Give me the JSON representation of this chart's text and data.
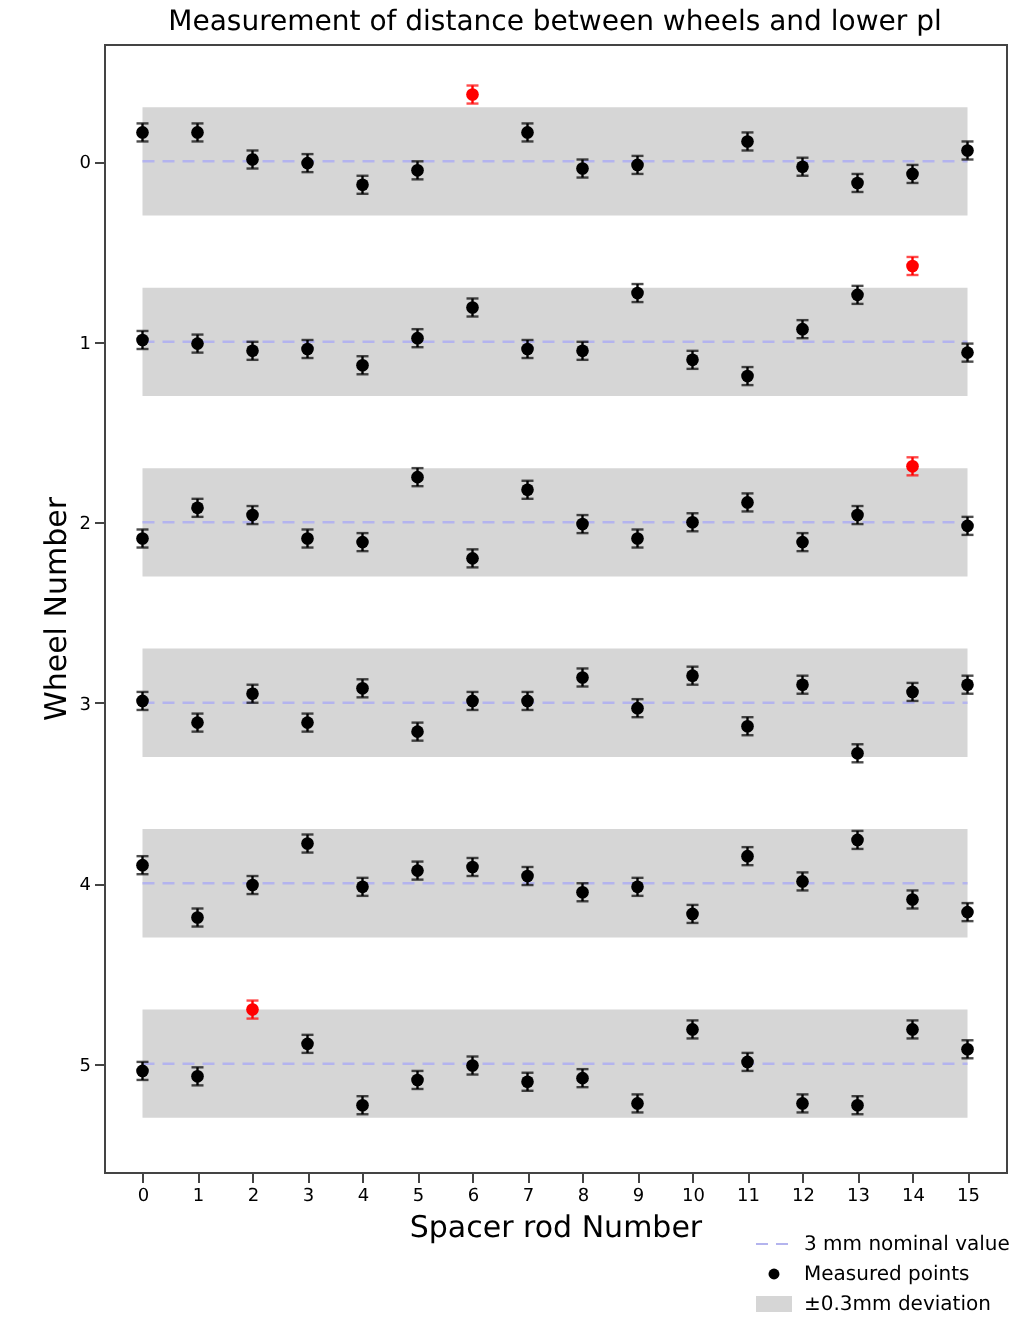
{
  "chart_data": {
    "type": "scatter",
    "title": "Measurement of distance between wheels and lower pl",
    "xlabel": "Spacer rod Number",
    "ylabel": "Wheel Number",
    "x": [
      0,
      1,
      2,
      3,
      4,
      5,
      6,
      7,
      8,
      9,
      10,
      11,
      12,
      13,
      14,
      15,
      0,
      1,
      2,
      3,
      4,
      5,
      6,
      7,
      8,
      9,
      10,
      11,
      12,
      13,
      14,
      15,
      0,
      1,
      2,
      3,
      4,
      5,
      6,
      7,
      8,
      9,
      10,
      11,
      12,
      13,
      14,
      15,
      0,
      1,
      2,
      3,
      4,
      5,
      6,
      7,
      8,
      9,
      10,
      11,
      12,
      13,
      14,
      15,
      0,
      1,
      2,
      3,
      4,
      5,
      6,
      7,
      8,
      9,
      10,
      11,
      12,
      13,
      14,
      15,
      0,
      1,
      2,
      3,
      4,
      5,
      6,
      7,
      8,
      9,
      10,
      11,
      12,
      13,
      14,
      15
    ],
    "series": [
      {
        "name": "Measured points",
        "color": "#000000",
        "values": [
          -0.16,
          -0.16,
          -0.01,
          0.01,
          0.13,
          0.05,
          null,
          -0.16,
          0.04,
          0.02,
          null,
          -0.11,
          0.03,
          0.12,
          0.07,
          -0.06,
          0.99,
          1.01,
          1.05,
          1.04,
          1.13,
          0.98,
          0.81,
          1.04,
          1.05,
          0.73,
          1.1,
          1.19,
          0.93,
          0.74,
          null,
          1.06,
          2.09,
          1.92,
          1.96,
          2.09,
          2.11,
          1.75,
          2.2,
          1.82,
          2.01,
          2.09,
          2.0,
          1.89,
          2.11,
          1.96,
          null,
          2.02,
          2.99,
          3.11,
          2.95,
          3.11,
          2.92,
          3.16,
          2.99,
          2.99,
          2.86,
          3.03,
          2.85,
          3.13,
          2.9,
          3.28,
          2.94,
          2.9,
          3.9,
          4.19,
          4.01,
          3.78,
          4.02,
          3.93,
          3.91,
          3.96,
          4.05,
          4.02,
          4.17,
          3.85,
          3.99,
          3.76,
          4.09,
          4.16,
          5.04,
          5.07,
          null,
          4.89,
          5.23,
          5.09,
          5.01,
          5.1,
          5.08,
          5.22,
          4.81,
          4.99,
          5.22,
          5.23,
          4.81,
          4.92
        ],
        "errors": [
          0.05,
          0.05,
          0.05,
          0.05,
          0.05,
          0.05,
          null,
          0.05,
          0.05,
          0.05,
          null,
          0.05,
          0.05,
          0.05,
          0.05,
          0.05,
          0.05,
          0.05,
          0.05,
          0.05,
          0.05,
          0.05,
          0.05,
          0.05,
          0.05,
          0.05,
          0.05,
          0.05,
          0.05,
          0.05,
          null,
          0.05,
          0.05,
          0.05,
          0.05,
          0.05,
          0.05,
          0.05,
          0.05,
          0.05,
          0.05,
          0.05,
          0.05,
          0.05,
          0.05,
          0.05,
          null,
          0.05,
          0.05,
          0.05,
          0.05,
          0.05,
          0.05,
          0.05,
          0.05,
          0.05,
          0.05,
          0.05,
          0.05,
          0.05,
          0.05,
          0.05,
          0.05,
          0.05,
          0.05,
          0.05,
          0.05,
          0.05,
          0.05,
          0.05,
          0.05,
          0.05,
          0.05,
          0.05,
          0.05,
          0.05,
          0.05,
          0.05,
          0.05,
          0.05,
          0.05,
          0.05,
          null,
          0.05,
          0.05,
          0.05,
          0.05,
          0.05,
          0.05,
          0.05,
          0.05,
          0.05,
          0.05,
          0.05,
          0.05,
          0.05
        ]
      },
      {
        "color": "#ff0000",
        "values": [
          null,
          null,
          null,
          null,
          null,
          null,
          -0.37,
          null,
          null,
          null,
          null,
          null,
          null,
          null,
          null,
          null,
          null,
          null,
          null,
          null,
          null,
          null,
          null,
          null,
          null,
          null,
          null,
          null,
          null,
          null,
          0.58,
          null,
          null,
          null,
          null,
          null,
          null,
          null,
          null,
          null,
          null,
          null,
          null,
          null,
          null,
          null,
          1.69,
          null,
          null,
          null,
          null,
          null,
          null,
          null,
          null,
          null,
          null,
          null,
          null,
          null,
          null,
          null,
          null,
          null,
          null,
          null,
          null,
          null,
          null,
          null,
          null,
          null,
          null,
          null,
          null,
          null,
          null,
          null,
          null,
          null,
          null,
          null,
          4.7,
          null,
          null,
          null,
          null,
          null,
          null,
          null,
          null,
          null,
          null,
          null,
          null,
          null
        ],
        "errors": [
          null,
          null,
          null,
          null,
          null,
          null,
          0.05,
          null,
          null,
          null,
          null,
          null,
          null,
          null,
          null,
          null,
          null,
          null,
          null,
          null,
          null,
          null,
          null,
          null,
          null,
          null,
          null,
          null,
          null,
          null,
          0.05,
          null,
          null,
          null,
          null,
          null,
          null,
          null,
          null,
          null,
          null,
          null,
          null,
          null,
          null,
          null,
          0.05,
          null,
          null,
          null,
          null,
          null,
          null,
          null,
          null,
          null,
          null,
          null,
          null,
          null,
          null,
          null,
          null,
          null,
          null,
          null,
          null,
          null,
          null,
          null,
          null,
          null,
          null,
          null,
          null,
          null,
          null,
          null,
          null,
          null,
          null,
          null,
          0.05,
          null,
          null,
          null,
          null,
          null,
          null,
          null,
          null,
          null,
          null,
          null,
          null,
          null
        ]
      }
    ],
    "xlim": [
      -0.7,
      15.7
    ],
    "xticks": [
      0,
      1,
      2,
      3,
      4,
      5,
      6,
      7,
      8,
      9,
      10,
      11,
      12,
      13,
      14,
      15
    ],
    "ylim": [
      5.6,
      -0.65
    ],
    "yticks": [
      0,
      1,
      2,
      3,
      4,
      5
    ],
    "ref_lines": [
      {
        "axis": "y",
        "value": 0,
        "label": "3 mm nominal value",
        "color": "#b4b4ee",
        "line_style": "dashed"
      },
      {
        "axis": "y",
        "value": 1,
        "color": "#b4b4ee",
        "line_style": "dashed"
      },
      {
        "axis": "y",
        "value": 2,
        "color": "#b4b4ee",
        "line_style": "dashed"
      },
      {
        "axis": "y",
        "value": 3,
        "color": "#b4b4ee",
        "line_style": "dashed"
      },
      {
        "axis": "y",
        "value": 4,
        "color": "#b4b4ee",
        "line_style": "dashed"
      },
      {
        "axis": "y",
        "value": 5,
        "color": "#b4b4ee",
        "line_style": "dashed"
      }
    ],
    "bands": [
      {
        "axis": "y",
        "from": -0.3,
        "to": 0.3,
        "label": "±0.3mm deviation",
        "color": "#d6d6d6"
      },
      {
        "axis": "y",
        "from": 0.7,
        "to": 1.3,
        "color": "#d6d6d6"
      },
      {
        "axis": "y",
        "from": 1.7,
        "to": 2.3,
        "color": "#d6d6d6"
      },
      {
        "axis": "y",
        "from": 2.7,
        "to": 3.3,
        "color": "#d6d6d6"
      },
      {
        "axis": "y",
        "from": 3.7,
        "to": 4.3,
        "color": "#d6d6d6"
      },
      {
        "axis": "y",
        "from": 4.7,
        "to": 5.3,
        "color": "#d6d6d6"
      }
    ],
    "grid": false,
    "legend": "bottom right",
    "marker": "circle"
  }
}
